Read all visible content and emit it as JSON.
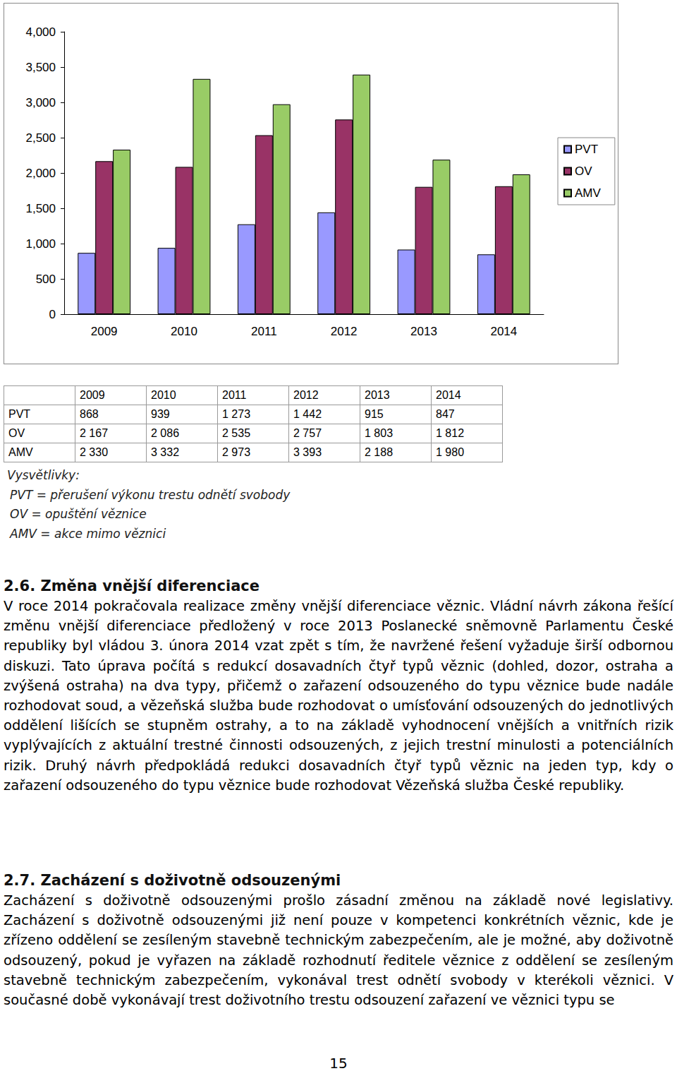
{
  "chart_data": {
    "type": "bar",
    "categories": [
      "2009",
      "2010",
      "2011",
      "2012",
      "2013",
      "2014"
    ],
    "series": [
      {
        "name": "PVT",
        "color": "#9999ff",
        "values": [
          868,
          939,
          1273,
          1442,
          915,
          847
        ]
      },
      {
        "name": "OV",
        "color": "#993366",
        "values": [
          2167,
          2086,
          2535,
          2757,
          1803,
          1812
        ]
      },
      {
        "name": "AMV",
        "color": "#99cc66",
        "values": [
          2330,
          3332,
          2973,
          3393,
          2188,
          1980
        ]
      }
    ],
    "ylim": [
      0,
      4000
    ],
    "yticks": [
      0,
      500,
      1000,
      1500,
      2000,
      2500,
      3000,
      3500,
      4000
    ],
    "grid": false,
    "legend": "right"
  },
  "table": {
    "header": [
      null,
      "2009",
      "2010",
      "2011",
      "2012",
      "2013",
      "2014"
    ],
    "rows": [
      [
        "PVT",
        "868",
        "939",
        "1 273",
        "1 442",
        "915",
        "847"
      ],
      [
        "OV",
        "2 167",
        "2 086",
        "2 535",
        "2 757",
        "1 803",
        "1 812"
      ],
      [
        "AMV",
        "2 330",
        "3 332",
        "2 973",
        "3 393",
        "2 188",
        "1 980"
      ]
    ]
  },
  "notes": {
    "title": "Vysvětlivky:",
    "items": [
      "PVT = přerušení výkonu trestu odnětí svobody",
      "OV = opuštění věznice",
      "AMV = akce mimo věznici"
    ]
  },
  "sections": [
    {
      "heading": "2.6. Změna vnější diferenciace",
      "paragraphs": [
        "V roce 2014 pokračovala realizace změny vnější diferenciace věznic. Vládní návrh zákona řešící změnu vnější diferenciace předložený v roce 2013 Poslanecké sněmovně Parlamentu České republiky byl vládou 3. února 2014 vzat zpět s tím, že navržené řešení vyžaduje širší odbornou diskuzi. Tato úprava počítá s redukcí dosavadních čtyř typů věznic (dohled, dozor, ostraha a zvýšená ostraha) na dva typy, přičemž o zařazení odsouzeného do typu věznice bude nadále rozhodovat soud, a vězeňská služba bude rozhodovat o umísťování odsouzených do jednotlivých oddělení lišících se stupněm ostrahy, a to na základě vyhodnocení vnějších a vnitřních rizik vyplývajících z aktuální trestné činnosti odsouzených, z jejich trestní minulosti a potenciálních rizik. Druhý návrh předpokládá redukci dosavadních čtyř typů věznic na jeden typ, kdy o zařazení odsouzeného do typu věznice bude rozhodovat Vězeňská služba České republiky."
      ]
    },
    {
      "heading": "2.7. Zacházení s doživotně odsouzenými",
      "paragraphs": [
        "Zacházení s doživotně odsouzenými prošlo zásadní změnou na základě nové legislativy. Zacházení s doživotně odsouzenými již není pouze v kompetenci konkrétních věznic, kde je zřízeno oddělení se zesíleným stavebně technickým zabezpečením, ale je možné, aby doživotně odsouzený, pokud je vyřazen na základě rozhodnutí ředitele věznice z oddělení se zesíleným stavebně technickým zabezpečením, vykonával trest odnětí svobody v kterékoli věznici. V současné době vykonávají trest doživotního trestu odsouzení zařazení ve věznici typu se"
      ]
    }
  ],
  "page_number": "15"
}
